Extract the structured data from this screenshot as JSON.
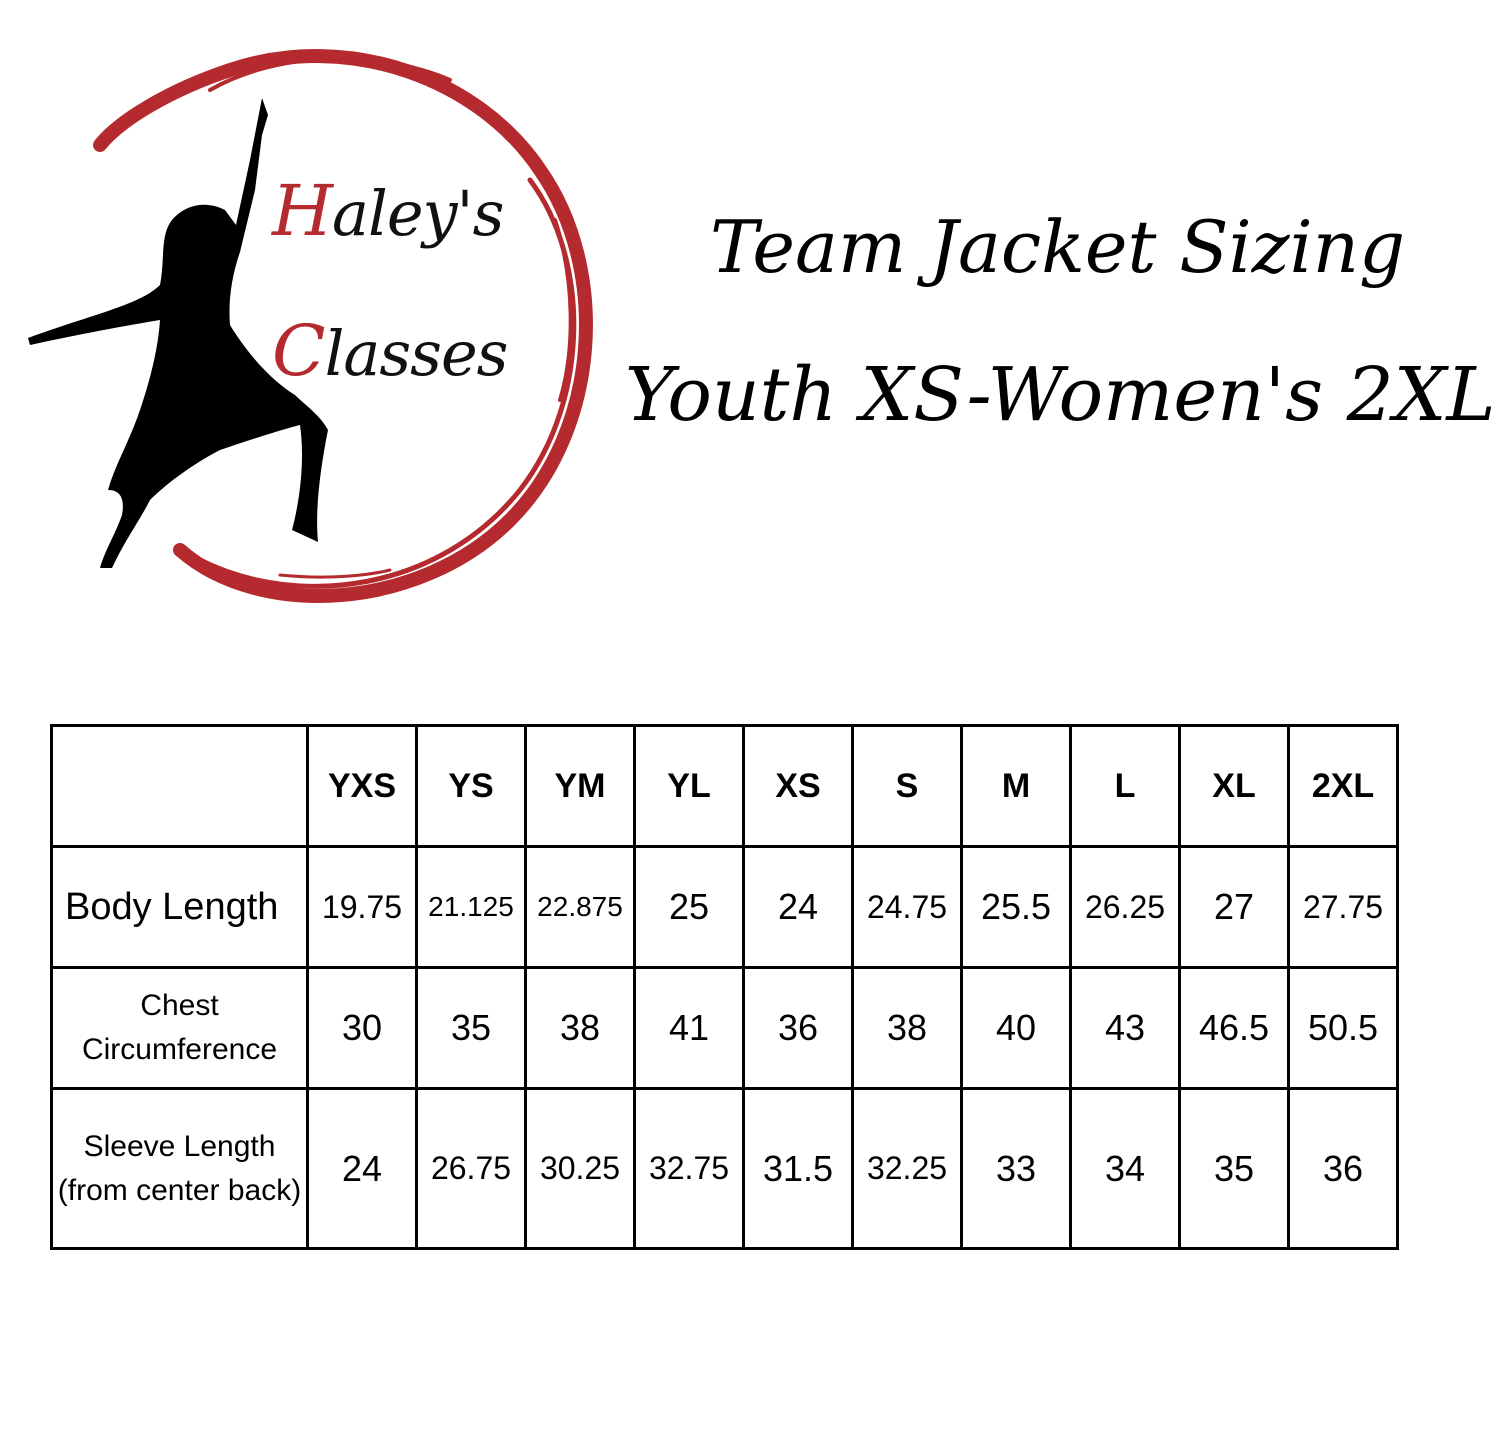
{
  "logo": {
    "line1": "Haley's",
    "line2": "Classes",
    "brand_color": "#b52a2e"
  },
  "title": {
    "line1": "Team Jacket Sizing",
    "line2": "Youth XS-Women's 2XL"
  },
  "table": {
    "columns": [
      "YXS",
      "YS",
      "YM",
      "YL",
      "XS",
      "S",
      "M",
      "L",
      "XL",
      "2XL"
    ],
    "rows": [
      {
        "label": "Body Length",
        "values": [
          "19.75",
          "21.125",
          "22.875",
          "25",
          "24",
          "24.75",
          "25.5",
          "26.25",
          "27",
          "27.75"
        ]
      },
      {
        "label": "Chest Circumference",
        "values": [
          "30",
          "35",
          "38",
          "41",
          "36",
          "38",
          "40",
          "43",
          "46.5",
          "50.5"
        ]
      },
      {
        "label": "Sleeve Length (from center back)",
        "values": [
          "24",
          "26.75",
          "30.25",
          "32.75",
          "31.5",
          "32.25",
          "33",
          "34",
          "35",
          "36"
        ]
      }
    ]
  }
}
